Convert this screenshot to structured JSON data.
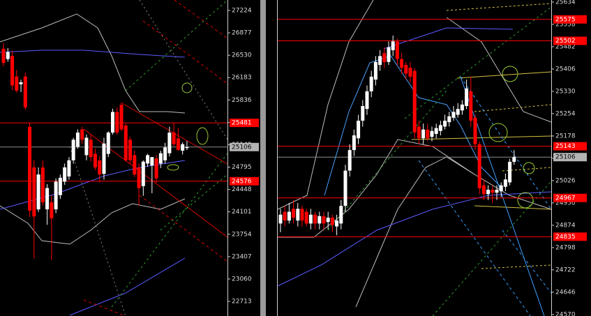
{
  "chart_data": [
    {
      "type": "candlestick",
      "up_color": "#ffffff",
      "down_color": "#ff0000",
      "level_color": "#ff0000",
      "open": [
        26630,
        26470,
        26520,
        26200,
        26080,
        26200,
        25420,
        24790,
        24140,
        24790,
        24140,
        24250,
        24140,
        24360,
        24570,
        24650,
        24900,
        25110,
        25380,
        24980,
        25220,
        25000,
        24900,
        24690,
        25000,
        25330,
        25650,
        25760,
        25440,
        25220,
        24980,
        24790,
        24500,
        24850,
        24820,
        24930,
        24850,
        24900,
        25010,
        25330,
        25240,
        25050,
        25090
      ],
      "high": [
        26720,
        26640,
        26600,
        26300,
        26150,
        26260,
        25480,
        24900,
        24790,
        24900,
        24530,
        24360,
        24620,
        24680,
        24850,
        24950,
        25250,
        25380,
        25420,
        25300,
        25300,
        25080,
        24960,
        25250,
        25350,
        25700,
        25720,
        25800,
        25470,
        25260,
        25050,
        24850,
        24900,
        25000,
        24950,
        24980,
        25050,
        25170,
        25420,
        25480,
        25400,
        25180,
        25200
      ],
      "low": [
        26360,
        26430,
        25990,
        25950,
        25960,
        25680,
        24020,
        23380,
        24100,
        24200,
        23900,
        23350,
        24080,
        24300,
        24520,
        24600,
        24850,
        25080,
        25160,
        24900,
        24880,
        24750,
        24560,
        24600,
        24950,
        25300,
        25300,
        25350,
        24880,
        24840,
        24640,
        24200,
        24350,
        24800,
        24390,
        24550,
        24780,
        24850,
        24960,
        25120,
        25050,
        24990,
        25060
      ],
      "close": [
        26410,
        26580,
        26060,
        25980,
        26110,
        25720,
        24120,
        24030,
        24680,
        24250,
        24470,
        24000,
        24570,
        24630,
        24790,
        24900,
        25220,
        25330,
        25220,
        25250,
        24950,
        24790,
        24680,
        25160,
        25330,
        25650,
        25330,
        25380,
        24900,
        24900,
        24680,
        24470,
        24880,
        24980,
        24950,
        24620,
        25010,
        25100,
        25330,
        25150,
        25060,
        25150,
        25106
      ],
      "ylim": [
        22486,
        27386
      ],
      "yticks": [
        22713,
        23060,
        23407,
        23754,
        24101,
        24448,
        24795,
        25142,
        25489,
        25836,
        26183,
        26530,
        26877,
        27224
      ],
      "levels": [
        25481,
        24576
      ],
      "last": 25106
    },
    {
      "type": "candlestick",
      "up_color": "#ffffff",
      "down_color": "#ff0000",
      "level_color": "#ff0000",
      "open": [
        24880,
        24920,
        24890,
        24930,
        24890,
        24930,
        24920,
        24880,
        24910,
        24880,
        24905,
        24885,
        24900,
        24870,
        24880,
        24940,
        25060,
        25130,
        25170,
        25230,
        25270,
        25330,
        25370,
        25420,
        25460,
        25430,
        25470,
        25500,
        25440,
        25420,
        25410,
        25400,
        25210,
        25170,
        25200,
        25175,
        25185,
        25195,
        25210,
        25225,
        25240,
        25250,
        25265,
        25280,
        25330,
        25240,
        25150,
        25010,
        24980,
        24995,
        24985,
        24990,
        25005,
        25020,
        25090
      ],
      "high": [
        24930,
        24940,
        24950,
        24960,
        24950,
        24940,
        24930,
        24930,
        24920,
        24920,
        24920,
        24920,
        24910,
        24910,
        24960,
        25080,
        25150,
        25200,
        25250,
        25300,
        25350,
        25400,
        25450,
        25470,
        25480,
        25500,
        25520,
        25510,
        25460,
        25430,
        25430,
        25410,
        25230,
        25220,
        25220,
        25210,
        25220,
        25230,
        25250,
        25260,
        25280,
        25290,
        25300,
        25370,
        25380,
        25250,
        25160,
        25030,
        25010,
        25010,
        25010,
        25020,
        25050,
        25100,
        25130
      ],
      "low": [
        24850,
        24870,
        24880,
        24880,
        24870,
        24870,
        24870,
        24860,
        24860,
        24860,
        24860,
        24860,
        24850,
        24840,
        24860,
        24920,
        25040,
        25110,
        25150,
        25210,
        25250,
        25310,
        25350,
        25400,
        25410,
        25420,
        25450,
        25420,
        25390,
        25370,
        25360,
        25170,
        25150,
        25150,
        25160,
        25160,
        25170,
        25180,
        25200,
        25210,
        25230,
        25240,
        25250,
        25270,
        25210,
        25130,
        24980,
        24960,
        24960,
        24950,
        24960,
        24970,
        24990,
        25010,
        25080
      ],
      "close": [
        24910,
        24890,
        24920,
        24900,
        24930,
        24890,
        24880,
        24910,
        24880,
        24905,
        24880,
        24900,
        24875,
        24890,
        24940,
        25060,
        25130,
        25180,
        25230,
        25280,
        25330,
        25380,
        25430,
        25450,
        25430,
        25480,
        25500,
        25440,
        25410,
        25390,
        25380,
        25190,
        25170,
        25200,
        25170,
        25195,
        25205,
        25215,
        25230,
        25245,
        25260,
        25270,
        25285,
        25340,
        25230,
        25150,
        25000,
        24980,
        24995,
        24985,
        24995,
        25010,
        25030,
        25090,
        25106
      ],
      "ylim": [
        24565,
        25641
      ],
      "yticks": [
        24570,
        24646,
        24722,
        24798,
        24874,
        24950,
        25026,
        25102,
        25178,
        25254,
        25330,
        25406,
        25482,
        25558,
        25634
      ],
      "levels": [
        25575,
        25502,
        25143,
        24967,
        24835
      ],
      "last": 25106
    }
  ]
}
